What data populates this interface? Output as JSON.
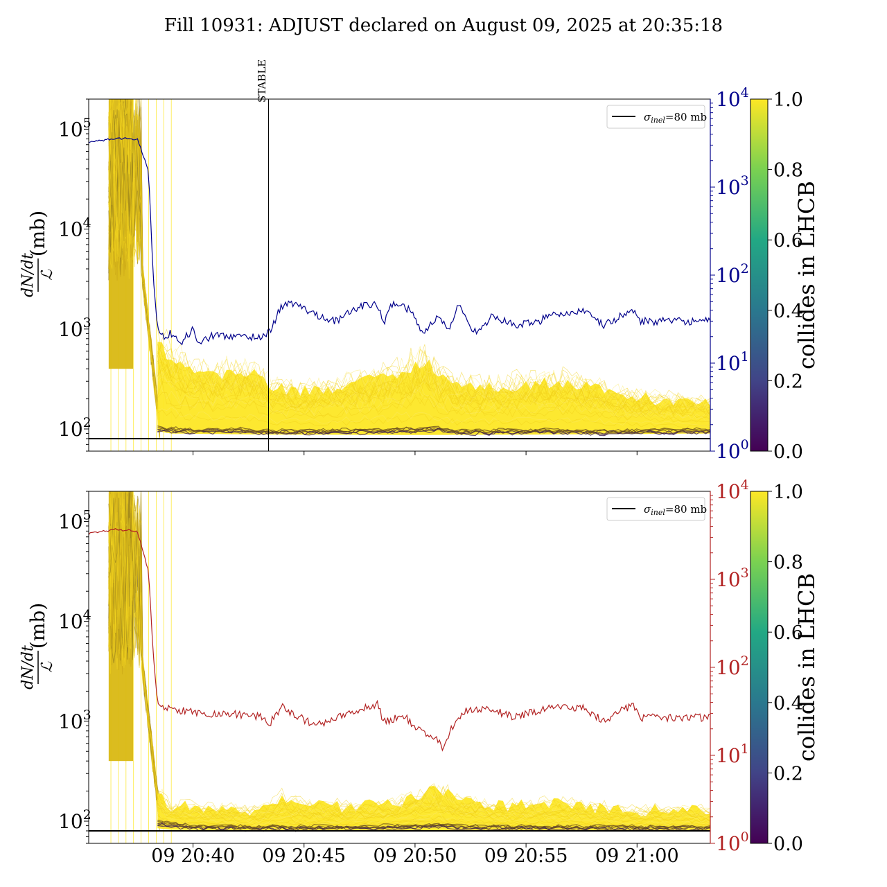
{
  "figure_title": "Fill 10931: ADJUST declared on August 09, 2025 at 20:35:18",
  "legend_label_prefix": "σ",
  "legend_label_sub": "inel",
  "legend_label_suffix": "=80 mb",
  "stable_label": "STABLE",
  "colorbar_label": "collides in LHCB",
  "ylabel_numerator": "dN/dt",
  "ylabel_denominator": "ℒ",
  "ylabel_unit": "(mb)",
  "colors": {
    "top_right_axis": "#00008b",
    "bottom_right_axis": "#b22222",
    "yellow": "#fde725",
    "dark_band": "#3b1d4f",
    "reference_line": "#000000"
  },
  "chart_data": [
    {
      "type": "line",
      "panel": "top",
      "x_tick_labels": [],
      "x_ticks_minutes": [
        40,
        45,
        50,
        55,
        60
      ],
      "xlim_minutes": [
        35.3,
        63.3
      ],
      "ylim": [
        60,
        200000
      ],
      "yscale": "log",
      "y_tick_labels": [
        {
          "base": "10",
          "exp": "2",
          "value": 100
        },
        {
          "base": "10",
          "exp": "3",
          "value": 1000
        },
        {
          "base": "10",
          "exp": "4",
          "value": 10000
        },
        {
          "base": "10",
          "exp": "5",
          "value": 100000
        }
      ],
      "right_axis": {
        "scale": "log",
        "ylim": [
          1,
          10000
        ],
        "tick_labels": [
          {
            "base": "10",
            "exp": "0",
            "value": 1
          },
          {
            "base": "10",
            "exp": "1",
            "value": 10
          },
          {
            "base": "10",
            "exp": "2",
            "value": 100
          },
          {
            "base": "10",
            "exp": "3",
            "value": 1000
          },
          {
            "base": "10",
            "exp": "4",
            "value": 10000
          }
        ]
      },
      "reference_line_value": 80,
      "stable_marker_minute": 43.4,
      "right_series": {
        "x": [
          35.3,
          36.5,
          37.5,
          38.0,
          38.2,
          38.4,
          38.6,
          39.0,
          39.5,
          40.0,
          40.3,
          40.6,
          41.0,
          42.0,
          43.0,
          43.4,
          44.0,
          44.5,
          45.5,
          46.5,
          47.5,
          48.3,
          48.6,
          49.0,
          49.8,
          50.3,
          51.0,
          51.5,
          52.0,
          52.6,
          53.5,
          54.5,
          55.5,
          56.3,
          56.5,
          57.5,
          58.5,
          59.8,
          60.2,
          63.3
        ],
        "y": [
          3200,
          3600,
          3500,
          1500,
          100,
          25,
          20,
          22,
          18,
          24,
          16,
          19,
          21,
          20,
          20,
          22,
          45,
          48,
          36,
          30,
          45,
          46,
          28,
          50,
          40,
          22,
          34,
          24,
          48,
          22,
          34,
          27,
          29,
          40,
          35,
          40,
          27,
          40,
          30,
          30
        ]
      },
      "band_upper": {
        "x": [
          38.4,
          39,
          40,
          41,
          42,
          43,
          43.5,
          45,
          47,
          49,
          50.5,
          51,
          52,
          53,
          55,
          57,
          59,
          61,
          63.3
        ],
        "y": [
          800,
          500,
          380,
          340,
          380,
          360,
          260,
          240,
          280,
          350,
          500,
          350,
          270,
          260,
          280,
          300,
          220,
          200,
          180
        ]
      },
      "band_lower": {
        "x": [
          38.4,
          39,
          43,
          50,
          56,
          63.3
        ],
        "y": [
          95,
          90,
          88,
          87,
          88,
          90
        ]
      },
      "dark_curve": {
        "x": [
          38.4,
          40,
          42,
          43,
          44,
          46,
          48,
          50,
          51,
          52,
          54,
          56,
          58,
          60,
          63.3
        ],
        "y": [
          95,
          90,
          92,
          88,
          88,
          89,
          90,
          92,
          95,
          88,
          89,
          90,
          88,
          89,
          90
        ]
      }
    },
    {
      "type": "line",
      "panel": "bottom",
      "x_tick_labels": [
        "09 20:40",
        "09 20:45",
        "09 20:50",
        "09 20:55",
        "09 21:00"
      ],
      "x_ticks_minutes": [
        40,
        45,
        50,
        55,
        60
      ],
      "xlim_minutes": [
        35.3,
        63.3
      ],
      "ylim": [
        60,
        200000
      ],
      "yscale": "log",
      "y_tick_labels": [
        {
          "base": "10",
          "exp": "2",
          "value": 100
        },
        {
          "base": "10",
          "exp": "3",
          "value": 1000
        },
        {
          "base": "10",
          "exp": "4",
          "value": 10000
        },
        {
          "base": "10",
          "exp": "5",
          "value": 100000
        }
      ],
      "right_axis": {
        "scale": "log",
        "ylim": [
          1,
          10000
        ],
        "tick_labels": [
          {
            "base": "10",
            "exp": "0",
            "value": 1
          },
          {
            "base": "10",
            "exp": "1",
            "value": 10
          },
          {
            "base": "10",
            "exp": "2",
            "value": 100
          },
          {
            "base": "10",
            "exp": "3",
            "value": 1000
          },
          {
            "base": "10",
            "exp": "4",
            "value": 10000
          }
        ]
      },
      "reference_line_value": 80,
      "right_series": {
        "x": [
          35.3,
          36.5,
          37.5,
          38.0,
          38.2,
          38.4,
          38.6,
          39.5,
          40.5,
          41.5,
          43.0,
          43.4,
          44.0,
          44.5,
          45.5,
          47.0,
          48.3,
          48.6,
          49.5,
          50.3,
          51.0,
          51.3,
          51.6,
          52.3,
          53.5,
          54.5,
          55.5,
          56.5,
          57.5,
          58.5,
          59.8,
          60.2,
          63.3
        ],
        "y": [
          3300,
          3700,
          3500,
          1200,
          150,
          40,
          35,
          32,
          30,
          30,
          28,
          22,
          36,
          30,
          22,
          30,
          38,
          24,
          28,
          18,
          15,
          12,
          20,
          32,
          33,
          27,
          32,
          36,
          35,
          25,
          38,
          27,
          27
        ]
      },
      "band_upper": {
        "x": [
          38.4,
          39,
          40,
          43,
          44,
          45,
          47,
          49,
          51,
          52,
          54,
          56,
          58,
          60,
          63.3
        ],
        "y": [
          200,
          140,
          140,
          130,
          170,
          150,
          140,
          150,
          210,
          160,
          140,
          150,
          140,
          130,
          130
        ]
      },
      "band_lower": {
        "x": [
          38.4,
          39,
          43,
          50,
          56,
          63.3
        ],
        "y": [
          85,
          82,
          80,
          80,
          80,
          80
        ]
      },
      "dark_curve": {
        "x": [
          38.4,
          40,
          45,
          50,
          51,
          52,
          56,
          63.3
        ],
        "y": [
          90,
          82,
          81,
          83,
          86,
          82,
          81,
          81
        ]
      }
    }
  ],
  "colorbar": {
    "cmap": "viridis",
    "range": [
      0.0,
      1.0
    ],
    "tick_labels": [
      "0.0",
      "0.2",
      "0.4",
      "0.6",
      "0.8",
      "1.0"
    ]
  }
}
